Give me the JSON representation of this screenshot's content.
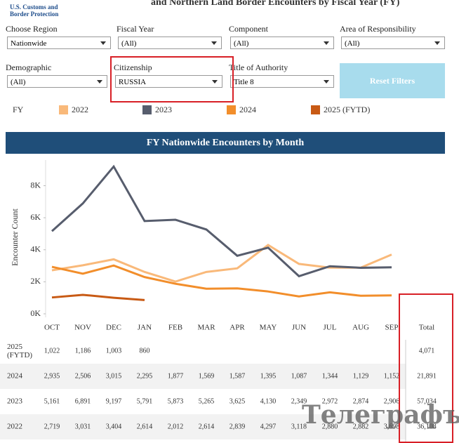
{
  "header": {
    "logo": "U.S. Customs and Border Protection",
    "title": "and Northern Land Border Encounters by Fiscal Year (FY)"
  },
  "filters": [
    {
      "label": "Choose Region",
      "value": "Nationwide"
    },
    {
      "label": "Fiscal Year",
      "value": "(All)"
    },
    {
      "label": "Component",
      "value": "(All)"
    },
    {
      "label": "Area of Responsibility",
      "value": "(All)"
    },
    {
      "label": "Demographic",
      "value": "(All)"
    },
    {
      "label": "Citizenship",
      "value": "RUSSIA"
    },
    {
      "label": "Title of Authority",
      "value": "Title 8"
    }
  ],
  "reset_button": "Reset Filters",
  "legend_title": "FY",
  "chart_data": {
    "type": "line",
    "title": "FY Nationwide Encounters by Month",
    "y_label": "Encounter Count",
    "categories": [
      "OCT",
      "NOV",
      "DEC",
      "JAN",
      "FEB",
      "MAR",
      "APR",
      "MAY",
      "JUN",
      "JUL",
      "AUG",
      "SEP"
    ],
    "ylim": [
      0,
      9600
    ],
    "yticks": [
      {
        "value": 0,
        "label": "0K"
      },
      {
        "value": 2000,
        "label": "2K"
      },
      {
        "value": 4000,
        "label": "4K"
      },
      {
        "value": 6000,
        "label": "6K"
      },
      {
        "value": 8000,
        "label": "8K"
      }
    ],
    "series": [
      {
        "name": "2022",
        "color": "#f9b97a",
        "values": [
          2719,
          3031,
          3404,
          2614,
          2012,
          2614,
          2839,
          4297,
          3118,
          2880,
          2882,
          3698
        ],
        "value_labels": [
          "2,719",
          "3,031",
          "3,404",
          "2,614",
          "2,012",
          "2,614",
          "2,839",
          "4,297",
          "3,118",
          "2,880",
          "2,882",
          "3,698"
        ]
      },
      {
        "name": "2023",
        "color": "#575d6d",
        "values": [
          5161,
          6891,
          9197,
          5791,
          5873,
          5265,
          3625,
          4130,
          2349,
          2972,
          2874,
          2906
        ],
        "value_labels": [
          "5,161",
          "6,891",
          "9,197",
          "5,791",
          "5,873",
          "5,265",
          "3,625",
          "4,130",
          "2,349",
          "2,972",
          "2,874",
          "2,906"
        ]
      },
      {
        "name": "2024",
        "color": "#f28e2b",
        "values": [
          2935,
          2506,
          3015,
          2295,
          1877,
          1569,
          1587,
          1395,
          1087,
          1344,
          1129,
          1152
        ],
        "value_labels": [
          "2,935",
          "2,506",
          "3,015",
          "2,295",
          "1,877",
          "1,569",
          "1,587",
          "1,395",
          "1,087",
          "1,344",
          "1,129",
          "1,152"
        ]
      },
      {
        "name": "2025 (FYTD)",
        "color": "#c85a14",
        "values": [
          1022,
          1186,
          1003,
          860,
          null,
          null,
          null,
          null,
          null,
          null,
          null,
          null
        ],
        "value_labels": [
          "1,022",
          "1,186",
          "1,003",
          "860",
          null,
          null,
          null,
          null,
          null,
          null,
          null,
          null
        ]
      }
    ]
  },
  "table": {
    "total_header": "Total",
    "totals": [
      "36,108",
      "57,034",
      "21,891",
      "4,071"
    ]
  },
  "watermark": "Телеграфъ"
}
